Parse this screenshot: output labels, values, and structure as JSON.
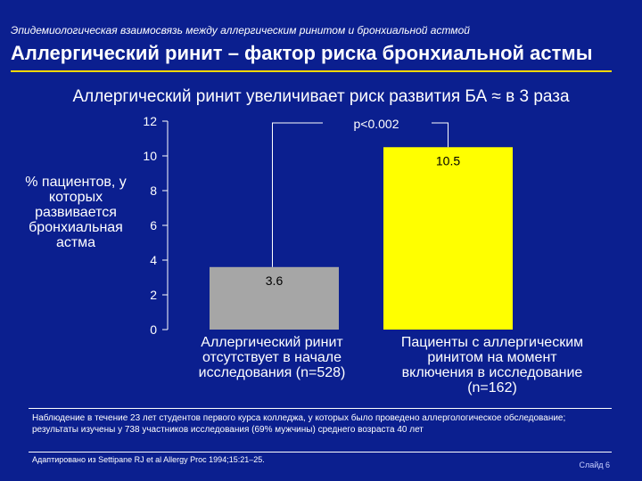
{
  "header": {
    "kicker": "Эпидемиологическая взаимосвязь между аллергическим ринитом и бронхиальной астмой",
    "title": "Аллергический ринит – фактор риска бронхиальной астмы",
    "subtitle": "Аллергический ринит увеличивает риск развития БА ≈ в 3 раза"
  },
  "colors": {
    "background": "#0b1f8f",
    "accent_rule": "#ffd800",
    "bar_without_rhinitis": "#a6a6a6",
    "bar_with_rhinitis": "#ffff00"
  },
  "chart_data": {
    "type": "bar",
    "ylabel": "% пациентов, у которых развивается бронхиальная астма",
    "ylim": [
      0,
      12
    ],
    "yticks": [
      0,
      2,
      4,
      6,
      8,
      10,
      12
    ],
    "grid": false,
    "categories": [
      "Аллергический ринит отсутствует в начале исследования (n=528)",
      "Пациенты с аллергическим ринитом на момент включения в исследование (n=162)"
    ],
    "category_lines": [
      [
        "Аллергический ринит",
        "отсутствует в начале",
        "исследования (n=528)"
      ],
      [
        "Пациенты с аллергическим",
        "ринитом на момент",
        "включения в исследование",
        "(n=162)"
      ]
    ],
    "values": [
      3.6,
      10.5
    ],
    "data_labels": [
      "3.6",
      "10.5"
    ],
    "bar_colors": [
      "#a6a6a6",
      "#ffff00"
    ],
    "annotation": "p<0.002"
  },
  "footer": {
    "footnote": "Наблюдение в течение 23 лет студентов первого курса колледжа, у которых было проведено аллергологическое обследование; результаты изучены у 738 участников исследования (69% мужчины) среднего возраста 40 лет",
    "source": "Адаптировано из Settipane RJ et al Allergy Proc 1994;15:21–25.",
    "slide_number": "Слайд 6"
  }
}
